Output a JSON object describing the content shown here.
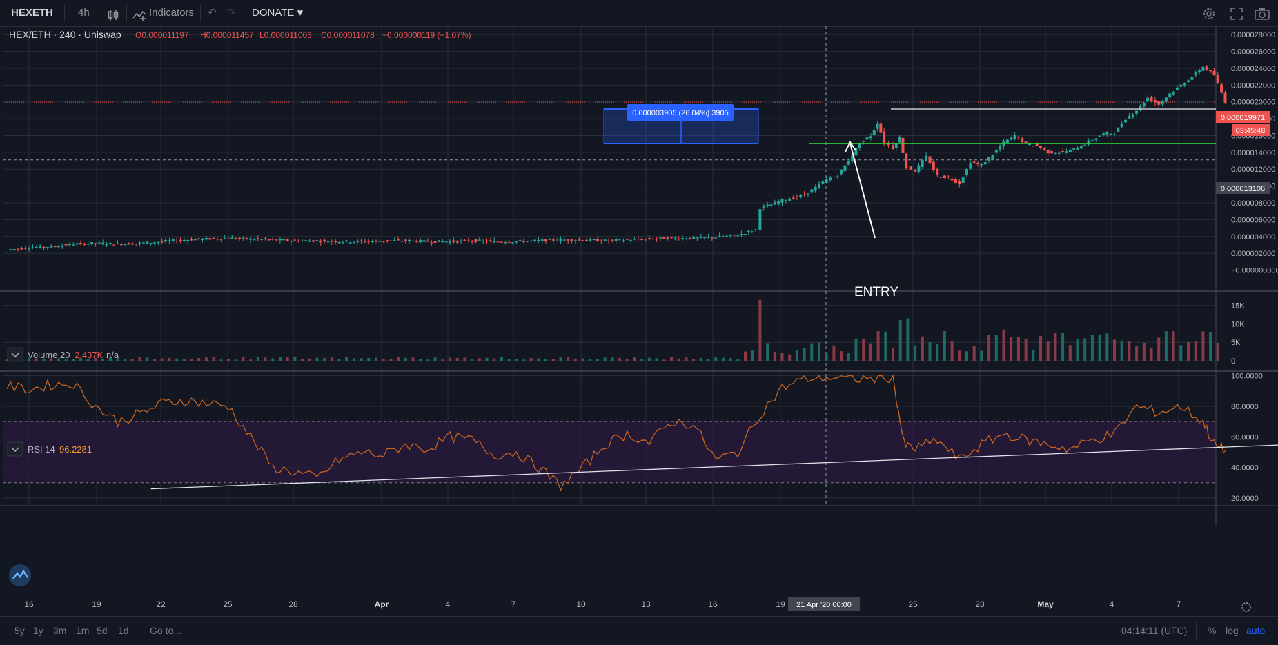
{
  "toolbar": {
    "symbol": "HEXETH",
    "interval": "4h",
    "indicators_label": "Indicators",
    "donate_label": "DONATE ♥"
  },
  "legend": {
    "title": "HEX/ETH · 240 · Uniswap",
    "open": "O0.000011197",
    "high": "H0.000011457",
    "low": "L0.000011003",
    "close": "C0.000011078",
    "change": "−0.000000119 (−1.07%)"
  },
  "volume_legend": {
    "name": "Volume 20",
    "value": "2.437K",
    "extra": "n/a"
  },
  "rsi_legend": {
    "name": "RSI 14",
    "value": "96.2281"
  },
  "price_badges": {
    "last_price": "0.000019971",
    "countdown": "03:45:48",
    "crosshair_price": "0.000013106",
    "crosshair_date": "21 Apr '20   00:00"
  },
  "annotations": {
    "measure_label": "0.000003905 (26.04%) 3905",
    "entry_label": "ENTRY"
  },
  "bottombar": {
    "ranges": [
      "5y",
      "1y",
      "3m",
      "1m",
      "5d",
      "1d"
    ],
    "goto_label": "Go to...",
    "clock": "04:14:11 (UTC)",
    "percent_label": "%",
    "log_label": "log",
    "auto_label": "auto"
  },
  "colors": {
    "background": "#131722",
    "up": "#26a69a",
    "down": "#ef5350",
    "rsi_line": "#c9651f",
    "green_line": "#2ee62e",
    "measure_box": "#2962ff"
  },
  "chart_data": [
    {
      "type": "candlestick",
      "title": "HEX/ETH · 240 · Uniswap",
      "x_ticks": [
        "16",
        "19",
        "22",
        "25",
        "28",
        "Apr",
        "4",
        "7",
        "10",
        "13",
        "16",
        "19",
        "21 Apr '20",
        "25",
        "28",
        "May",
        "4",
        "7"
      ],
      "y_ticks": [
        "0.000028000",
        "0.000026000",
        "0.000024000",
        "0.000022000",
        "0.000020000",
        "0.000018000",
        "0.000016000",
        "0.000014000",
        "0.000012000",
        "0.000010000",
        "0.000008000",
        "0.000006000",
        "0.000004000",
        "0.000002000",
        "−0.000000000"
      ],
      "ylim": [
        -2.5e-06,
        2.9e-05
      ],
      "x_range_days": [
        -1.5,
        54
      ],
      "series_note_x": "days since Mar 15, 2020",
      "close_path": [
        [
          0,
          2.4e-06
        ],
        [
          1,
          2.7e-06
        ],
        [
          2,
          2.8e-06
        ],
        [
          3,
          3.1e-06
        ],
        [
          4,
          3.2e-06
        ],
        [
          5,
          3.1e-06
        ],
        [
          6,
          3.2e-06
        ],
        [
          7,
          3.4e-06
        ],
        [
          8,
          3.6e-06
        ],
        [
          9,
          3.7e-06
        ],
        [
          10,
          3.8e-06
        ],
        [
          11,
          3.7e-06
        ],
        [
          12,
          3.6e-06
        ],
        [
          13,
          3.5e-06
        ],
        [
          14,
          3.5e-06
        ],
        [
          15,
          3.4e-06
        ],
        [
          16,
          3.4e-06
        ],
        [
          17,
          3.5e-06
        ],
        [
          18,
          3.5e-06
        ],
        [
          19,
          3.4e-06
        ],
        [
          20,
          3.4e-06
        ],
        [
          21,
          3.5e-06
        ],
        [
          22,
          3.4e-06
        ],
        [
          23,
          3.4e-06
        ],
        [
          24,
          3.5e-06
        ],
        [
          25,
          3.6e-06
        ],
        [
          26,
          3.6e-06
        ],
        [
          27,
          3.5e-06
        ],
        [
          28,
          3.6e-06
        ],
        [
          29,
          3.7e-06
        ],
        [
          30,
          3.8e-06
        ],
        [
          31,
          3.8e-06
        ],
        [
          32,
          3.9e-06
        ],
        [
          33,
          4.2e-06
        ],
        [
          33.8,
          4.8e-06
        ],
        [
          34.0,
          7.4e-06
        ],
        [
          34.5,
          7.8e-06
        ],
        [
          35,
          8.3e-06
        ],
        [
          35.5,
          8.6e-06
        ],
        [
          36,
          9e-06
        ],
        [
          36.5,
          9.8e-06
        ],
        [
          37,
          1.08e-05
        ],
        [
          37.5,
          1.13e-05
        ],
        [
          38,
          1.3e-05
        ],
        [
          38.5,
          1.51e-05
        ],
        [
          39,
          1.6e-05
        ],
        [
          39.3,
          1.75e-05
        ],
        [
          39.6,
          1.52e-05
        ],
        [
          40,
          1.45e-05
        ],
        [
          40.3,
          1.58e-05
        ],
        [
          40.6,
          1.22e-05
        ],
        [
          41,
          1.18e-05
        ],
        [
          41.5,
          1.35e-05
        ],
        [
          42,
          1.12e-05
        ],
        [
          42.5,
          1.1e-05
        ],
        [
          43,
          1.03e-05
        ],
        [
          43.5,
          1.28e-05
        ],
        [
          44,
          1.25e-05
        ],
        [
          44.5,
          1.38e-05
        ],
        [
          45,
          1.52e-05
        ],
        [
          45.5,
          1.6e-05
        ],
        [
          46,
          1.5e-05
        ],
        [
          46.5,
          1.48e-05
        ],
        [
          47,
          1.4e-05
        ],
        [
          47.5,
          1.4e-05
        ],
        [
          48,
          1.42e-05
        ],
        [
          48.5,
          1.48e-05
        ],
        [
          49,
          1.55e-05
        ],
        [
          49.5,
          1.62e-05
        ],
        [
          50,
          1.63e-05
        ],
        [
          50.5,
          1.8e-05
        ],
        [
          51,
          1.9e-05
        ],
        [
          51.5,
          2.05e-05
        ],
        [
          52,
          1.97e-05
        ],
        [
          52.5,
          2.1e-05
        ],
        [
          53,
          2.2e-05
        ],
        [
          53.5,
          2.3e-05
        ],
        [
          54,
          2.42e-05
        ],
        [
          54.5,
          2.32e-05
        ],
        [
          55,
          2e-05
        ]
      ]
    },
    {
      "type": "bar",
      "title": "Volume 20",
      "y_ticks": [
        "15K",
        "10K",
        "5K",
        "0"
      ],
      "ylim": [
        0,
        17000
      ],
      "spikes": [
        [
          34.0,
          16500
        ],
        [
          38.5,
          6000
        ],
        [
          39.2,
          8000
        ],
        [
          40.3,
          11000
        ],
        [
          40.8,
          11500
        ],
        [
          44.5,
          7000
        ],
        [
          45.5,
          6500
        ],
        [
          47.5,
          7500
        ],
        [
          52.5,
          8000
        ],
        [
          55,
          10000
        ]
      ]
    },
    {
      "type": "line",
      "title": "RSI 14",
      "y_ticks": [
        "100.0000",
        "80.0000",
        "60.0000",
        "40.0000",
        "20.0000"
      ],
      "ylim": [
        15,
        103
      ],
      "bands": [
        30,
        70
      ],
      "points": [
        [
          0,
          93
        ],
        [
          1,
          91
        ],
        [
          2,
          94
        ],
        [
          3,
          95
        ],
        [
          4,
          80
        ],
        [
          5,
          70
        ],
        [
          6,
          75
        ],
        [
          7,
          82
        ],
        [
          8,
          84
        ],
        [
          9,
          82
        ],
        [
          10,
          80
        ],
        [
          11,
          60
        ],
        [
          12,
          40
        ],
        [
          13,
          37
        ],
        [
          14,
          33
        ],
        [
          15,
          45
        ],
        [
          16,
          50
        ],
        [
          17,
          48
        ],
        [
          18,
          55
        ],
        [
          19,
          52
        ],
        [
          20,
          60
        ],
        [
          21,
          58
        ],
        [
          22,
          48
        ],
        [
          23,
          50
        ],
        [
          24,
          40
        ],
        [
          25,
          28
        ],
        [
          26,
          40
        ],
        [
          27,
          55
        ],
        [
          28,
          62
        ],
        [
          29,
          56
        ],
        [
          30,
          70
        ],
        [
          31,
          68
        ],
        [
          32,
          45
        ],
        [
          33,
          50
        ],
        [
          34,
          75
        ],
        [
          35,
          92
        ],
        [
          36,
          98
        ],
        [
          37,
          99
        ],
        [
          38,
          98
        ],
        [
          39,
          98
        ],
        [
          40,
          99
        ],
        [
          40.5,
          55
        ],
        [
          41,
          52
        ],
        [
          42,
          58
        ],
        [
          43,
          45
        ],
        [
          44,
          55
        ],
        [
          45,
          62
        ],
        [
          46,
          58
        ],
        [
          47,
          55
        ],
        [
          48,
          52
        ],
        [
          49,
          58
        ],
        [
          50,
          62
        ],
        [
          51,
          80
        ],
        [
          52,
          76
        ],
        [
          53,
          80
        ],
        [
          54,
          70
        ],
        [
          54.5,
          55
        ],
        [
          55,
          51
        ]
      ],
      "trendline": [
        [
          6.5,
          26
        ],
        [
          58,
          55
        ]
      ]
    }
  ]
}
